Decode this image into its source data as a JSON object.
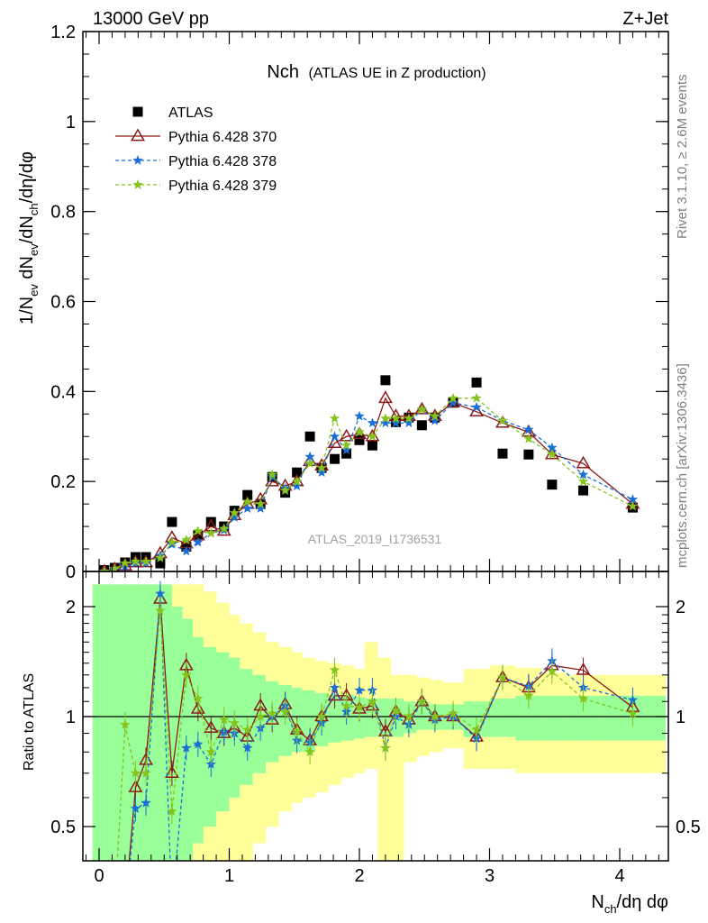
{
  "header": {
    "left": "13000 GeV pp",
    "right": "Z+Jet"
  },
  "side_labels": {
    "rivet": "Rivet 3.1.10, ≥ 2.6M events",
    "mcplots": "mcplots.cern.ch [arXiv:1306.3436]"
  },
  "watermark": "ATLAS_2019_I1736531",
  "chart_data": [
    {
      "type": "scatter",
      "panel": "main",
      "title_main": "Nch",
      "title_sub": "(ATLAS UE in Z production)",
      "ylabel": "1/N_ev dN_ev/dN_ch/dη/dφ",
      "xlabel": "N_ch/dη dφ",
      "xlim": [
        -0.1,
        4.4
      ],
      "ylim": [
        0,
        1.2
      ],
      "yticks": [
        0,
        0.2,
        0.4,
        0.6,
        0.8,
        1.0,
        1.2
      ],
      "ytick_labels": [
        "0",
        "0.2",
        "0.4",
        "0.6",
        "0.8",
        "1",
        "1.2"
      ],
      "legend_position": "top-left",
      "series": [
        {
          "name": "ATLAS",
          "color": "#000000",
          "marker": "square",
          "x": [
            0.04,
            0.12,
            0.2,
            0.28,
            0.36,
            0.47,
            0.56,
            0.67,
            0.76,
            0.86,
            0.96,
            1.04,
            1.14,
            1.24,
            1.33,
            1.43,
            1.52,
            1.62,
            1.71,
            1.81,
            1.9,
            2.0,
            2.1,
            2.2,
            2.28,
            2.38,
            2.48,
            2.58,
            2.72,
            2.9,
            3.1,
            3.3,
            3.48,
            3.72,
            4.1
          ],
          "y": [
            0.003,
            0.008,
            0.02,
            0.032,
            0.032,
            0.018,
            0.11,
            0.055,
            0.08,
            0.11,
            0.1,
            0.135,
            0.17,
            0.15,
            0.21,
            0.175,
            0.22,
            0.3,
            0.23,
            0.25,
            0.262,
            0.292,
            0.28,
            0.425,
            0.332,
            0.342,
            0.325,
            0.342,
            0.375,
            0.42,
            0.262,
            0.26,
            0.193,
            0.18,
            0.142
          ]
        },
        {
          "name": "Pythia 6.428 370",
          "color": "#8b1a1a",
          "marker": "triangle-open",
          "line": "solid",
          "x": [
            0.04,
            0.12,
            0.2,
            0.28,
            0.36,
            0.47,
            0.56,
            0.67,
            0.76,
            0.86,
            0.96,
            1.04,
            1.14,
            1.24,
            1.33,
            1.43,
            1.52,
            1.62,
            1.71,
            1.81,
            1.9,
            2.0,
            2.1,
            2.2,
            2.28,
            2.38,
            2.48,
            2.58,
            2.72,
            2.9,
            3.1,
            3.3,
            3.48,
            3.72,
            4.1
          ],
          "y": [
            0.0,
            0.005,
            0.013,
            0.02,
            0.02,
            0.04,
            0.075,
            0.062,
            0.08,
            0.1,
            0.09,
            0.125,
            0.15,
            0.16,
            0.2,
            0.19,
            0.2,
            0.245,
            0.235,
            0.285,
            0.3,
            0.305,
            0.3,
            0.385,
            0.345,
            0.345,
            0.36,
            0.345,
            0.375,
            0.355,
            0.33,
            0.31,
            0.26,
            0.24,
            0.15
          ]
        },
        {
          "name": "Pythia 6.428 378",
          "color": "#1a6fd6",
          "marker": "star",
          "line": "dashed",
          "x": [
            0.04,
            0.12,
            0.2,
            0.28,
            0.36,
            0.47,
            0.56,
            0.67,
            0.76,
            0.86,
            0.96,
            1.04,
            1.14,
            1.24,
            1.33,
            1.43,
            1.52,
            1.62,
            1.71,
            1.81,
            1.9,
            2.0,
            2.1,
            2.2,
            2.28,
            2.38,
            2.48,
            2.58,
            2.72,
            2.9,
            3.1,
            3.3,
            3.48,
            3.72,
            4.1
          ],
          "y": [
            0.0,
            0.004,
            0.01,
            0.018,
            0.018,
            0.035,
            0.06,
            0.045,
            0.065,
            0.085,
            0.092,
            0.12,
            0.14,
            0.14,
            0.21,
            0.185,
            0.19,
            0.255,
            0.22,
            0.3,
            0.27,
            0.345,
            0.33,
            0.33,
            0.33,
            0.33,
            0.36,
            0.335,
            0.375,
            0.365,
            0.335,
            0.315,
            0.275,
            0.215,
            0.16
          ]
        },
        {
          "name": "Pythia 6.428 379",
          "color": "#84c41c",
          "marker": "star",
          "line": "dashed",
          "x": [
            0.04,
            0.12,
            0.2,
            0.28,
            0.36,
            0.47,
            0.56,
            0.67,
            0.76,
            0.86,
            0.96,
            1.04,
            1.14,
            1.24,
            1.33,
            1.43,
            1.52,
            1.62,
            1.71,
            1.81,
            1.9,
            2.0,
            2.1,
            2.2,
            2.28,
            2.38,
            2.48,
            2.58,
            2.72,
            2.9,
            3.1,
            3.3,
            3.48,
            3.72,
            4.1
          ],
          "y": [
            0.0,
            0.006,
            0.018,
            0.022,
            0.022,
            0.03,
            0.065,
            0.07,
            0.09,
            0.085,
            0.095,
            0.13,
            0.155,
            0.15,
            0.215,
            0.18,
            0.2,
            0.24,
            0.23,
            0.34,
            0.28,
            0.31,
            0.3,
            0.34,
            0.34,
            0.34,
            0.36,
            0.345,
            0.385,
            0.385,
            0.335,
            0.295,
            0.26,
            0.2,
            0.145
          ]
        }
      ]
    },
    {
      "type": "line",
      "panel": "ratio",
      "ylabel": "Ratio to ATLAS",
      "xlabel": "N_ch/dη dφ",
      "xlim": [
        -0.1,
        4.4
      ],
      "ylim": [
        0.35,
        2.3
      ],
      "yticks": [
        0.5,
        1,
        2
      ],
      "ytick_labels": [
        "0.5",
        "1",
        "2"
      ],
      "xticks": [
        0,
        1,
        2,
        3,
        4
      ],
      "xtick_labels": [
        "0",
        "1",
        "2",
        "3",
        "4"
      ],
      "reference_line": 1,
      "bands": {
        "x_edges": [
          -0.05,
          0.04,
          0.12,
          0.2,
          0.28,
          0.36,
          0.47,
          0.56,
          0.64,
          0.72,
          0.8,
          0.9,
          1.0,
          1.08,
          1.18,
          1.28,
          1.38,
          1.48,
          1.56,
          1.66,
          1.76,
          1.86,
          1.96,
          2.04,
          2.14,
          2.24,
          2.34,
          2.44,
          2.54,
          2.64,
          2.8,
          3.0,
          3.2,
          3.4,
          3.6,
          3.85,
          4.35
        ],
        "green_low": [
          0.35,
          0.35,
          0.35,
          0.35,
          0.35,
          0.35,
          0.35,
          0.35,
          0.35,
          0.45,
          0.5,
          0.55,
          0.6,
          0.65,
          0.7,
          0.75,
          0.78,
          0.8,
          0.8,
          0.83,
          0.85,
          0.86,
          0.87,
          0.88,
          0.88,
          0.88,
          0.9,
          0.92,
          0.92,
          0.92,
          0.88,
          0.88,
          0.86,
          0.86,
          0.86,
          0.86
        ],
        "green_high": [
          2.3,
          2.3,
          2.3,
          2.3,
          2.3,
          2.3,
          2.3,
          2.0,
          1.85,
          1.65,
          1.55,
          1.5,
          1.45,
          1.35,
          1.3,
          1.25,
          1.22,
          1.2,
          1.18,
          1.16,
          1.15,
          1.15,
          1.13,
          1.12,
          1.12,
          1.12,
          1.1,
          1.1,
          1.08,
          1.08,
          1.1,
          1.12,
          1.14,
          1.14,
          1.14,
          1.14
        ],
        "yellow_low": [
          0.35,
          0.35,
          0.35,
          0.35,
          0.35,
          0.35,
          0.35,
          0.35,
          0.35,
          0.35,
          0.35,
          0.35,
          0.35,
          0.4,
          0.45,
          0.5,
          0.55,
          0.58,
          0.6,
          0.62,
          0.65,
          0.68,
          0.7,
          0.72,
          0.35,
          0.35,
          0.75,
          0.78,
          0.8,
          0.82,
          0.72,
          0.72,
          0.7,
          0.7,
          0.7,
          0.7
        ],
        "yellow_high": [
          2.3,
          2.3,
          2.3,
          2.3,
          2.3,
          2.3,
          2.3,
          2.3,
          2.3,
          2.3,
          2.2,
          2.05,
          1.9,
          1.8,
          1.7,
          1.6,
          1.55,
          1.5,
          1.45,
          1.42,
          1.4,
          1.38,
          1.35,
          1.6,
          1.45,
          1.3,
          1.3,
          1.28,
          1.26,
          1.24,
          1.35,
          1.38,
          1.36,
          1.32,
          1.3,
          1.3
        ]
      },
      "series": [
        {
          "name": "Pythia 6.428 370",
          "color": "#8b1a1a",
          "marker": "triangle-open",
          "line": "solid",
          "x": [
            0.12,
            0.2,
            0.28,
            0.36,
            0.47,
            0.56,
            0.67,
            0.76,
            0.86,
            0.96,
            1.04,
            1.14,
            1.24,
            1.33,
            1.43,
            1.52,
            1.62,
            1.71,
            1.81,
            1.9,
            2.0,
            2.1,
            2.2,
            2.28,
            2.38,
            2.48,
            2.58,
            2.72,
            2.9,
            3.1,
            3.3,
            3.48,
            3.72,
            4.1
          ],
          "y": [
            0.3,
            0.3,
            0.64,
            0.76,
            2.1,
            0.7,
            1.38,
            1.05,
            0.93,
            0.9,
            0.93,
            0.88,
            1.07,
            0.98,
            1.08,
            0.92,
            0.86,
            1.0,
            1.14,
            1.14,
            1.05,
            1.07,
            0.91,
            1.03,
            0.98,
            1.1,
            1.0,
            1.0,
            0.88,
            1.28,
            1.2,
            1.38,
            1.34,
            1.06
          ]
        },
        {
          "name": "Pythia 6.428 378",
          "color": "#1a6fd6",
          "marker": "star",
          "line": "dashed",
          "x": [
            0.12,
            0.2,
            0.28,
            0.36,
            0.47,
            0.56,
            0.67,
            0.76,
            0.86,
            0.96,
            1.04,
            1.14,
            1.24,
            1.33,
            1.43,
            1.52,
            1.62,
            1.71,
            1.81,
            1.9,
            2.0,
            2.1,
            2.2,
            2.28,
            2.38,
            2.48,
            2.58,
            2.72,
            2.9,
            3.1,
            3.3,
            3.48,
            3.72,
            4.1
          ],
          "y": [
            0.3,
            0.3,
            0.56,
            0.58,
            2.17,
            0.3,
            0.82,
            0.84,
            0.74,
            0.91,
            0.9,
            0.82,
            0.93,
            1.0,
            1.07,
            0.86,
            0.85,
            0.96,
            1.2,
            1.03,
            1.18,
            1.18,
            0.82,
            1.0,
            0.95,
            1.1,
            0.98,
            1.0,
            0.87,
            1.28,
            1.21,
            1.42,
            1.2,
            1.11
          ]
        },
        {
          "name": "Pythia 6.428 379",
          "color": "#84c41c",
          "marker": "star",
          "line": "dashed",
          "x": [
            0.12,
            0.2,
            0.28,
            0.36,
            0.47,
            0.56,
            0.67,
            0.76,
            0.86,
            0.96,
            1.04,
            1.14,
            1.24,
            1.33,
            1.43,
            1.52,
            1.62,
            1.71,
            1.81,
            1.9,
            2.0,
            2.1,
            2.2,
            2.28,
            2.38,
            2.48,
            2.58,
            2.72,
            2.9,
            3.1,
            3.3,
            3.48,
            3.72,
            4.1
          ],
          "y": [
            0.3,
            0.95,
            0.7,
            0.7,
            1.95,
            0.55,
            1.3,
            1.12,
            0.8,
            0.98,
            0.96,
            0.92,
            1.0,
            1.02,
            1.03,
            0.91,
            0.8,
            1.0,
            1.34,
            1.07,
            1.06,
            1.1,
            0.82,
            1.04,
            1.0,
            1.1,
            1.0,
            1.02,
            0.92,
            1.28,
            1.14,
            1.33,
            1.12,
            1.02
          ]
        }
      ]
    }
  ]
}
